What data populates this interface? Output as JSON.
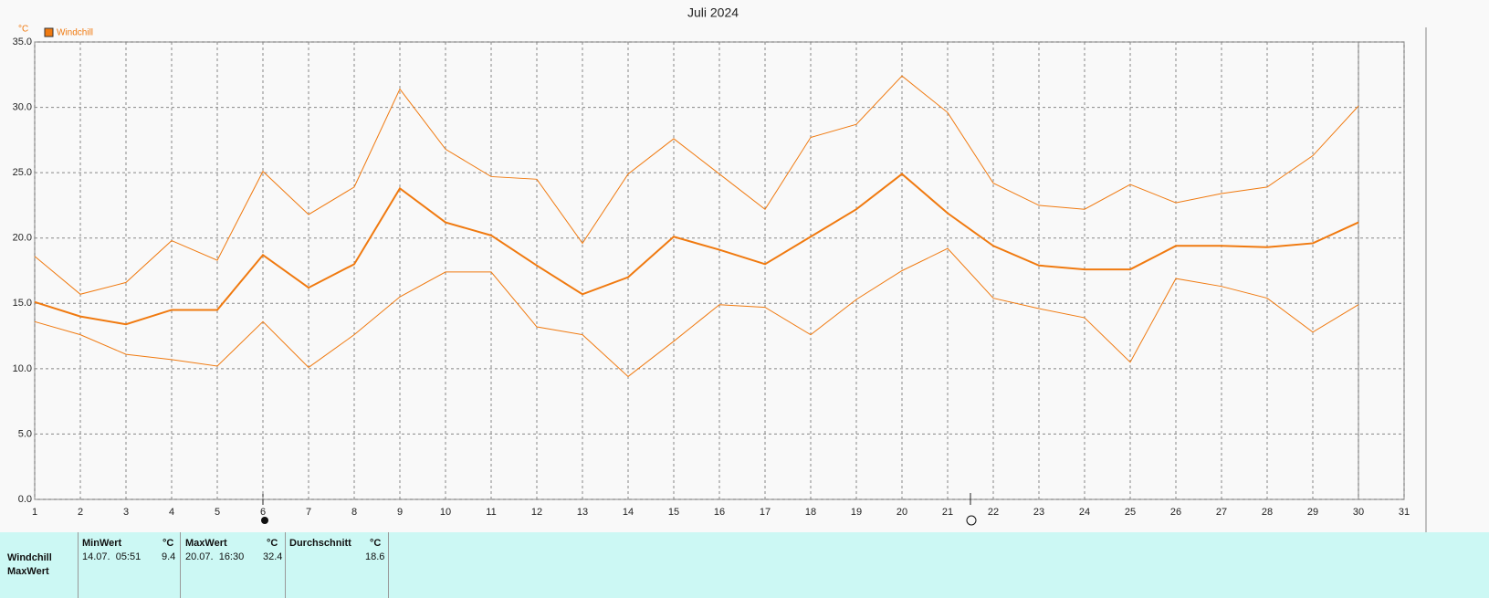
{
  "chart_data": {
    "type": "line",
    "title": "Juli 2024",
    "y_unit": "°C",
    "x": [
      1,
      2,
      3,
      4,
      5,
      6,
      7,
      8,
      9,
      10,
      11,
      12,
      13,
      14,
      15,
      16,
      17,
      18,
      19,
      20,
      21,
      22,
      23,
      24,
      25,
      26,
      27,
      28,
      29,
      30
    ],
    "series": [
      {
        "name": "Windchill",
        "color": "#f07a10",
        "width": 2,
        "values": [
          15.1,
          14.0,
          13.4,
          14.5,
          14.5,
          18.7,
          16.2,
          18.0,
          23.8,
          21.2,
          20.2,
          17.9,
          15.7,
          17.0,
          20.1,
          19.1,
          18.0,
          20.1,
          22.2,
          24.9,
          21.9,
          19.4,
          17.9,
          17.6,
          17.6,
          19.4,
          19.4,
          19.3,
          19.6,
          21.2
        ]
      },
      {
        "color": "#f07a10",
        "width": 1,
        "values": [
          18.6,
          15.7,
          16.6,
          19.8,
          18.3,
          25.1,
          21.8,
          23.9,
          31.4,
          26.8,
          24.7,
          24.5,
          19.6,
          24.9,
          27.6,
          24.9,
          22.2,
          27.7,
          28.7,
          32.4,
          29.6,
          24.2,
          22.5,
          22.2,
          24.1,
          22.7,
          23.4,
          23.9,
          26.3,
          30.1
        ]
      },
      {
        "color": "#f07a10",
        "width": 1,
        "values": [
          13.6,
          12.6,
          11.1,
          10.7,
          10.2,
          13.6,
          10.1,
          12.6,
          15.5,
          17.4,
          17.4,
          13.2,
          12.6,
          9.4,
          12.1,
          14.9,
          14.7,
          12.6,
          15.3,
          17.5,
          19.2,
          15.4,
          14.6,
          13.9,
          10.5,
          16.9,
          16.3,
          15.4,
          12.8,
          14.9
        ]
      }
    ],
    "xlim": [
      1,
      31
    ],
    "xticks": [
      1,
      2,
      3,
      4,
      5,
      6,
      7,
      8,
      9,
      10,
      11,
      12,
      13,
      14,
      15,
      16,
      17,
      18,
      19,
      20,
      21,
      22,
      23,
      24,
      25,
      26,
      27,
      28,
      29,
      30,
      31
    ],
    "ylim": [
      0,
      35
    ],
    "yticks": [
      {
        "value": 0,
        "label": "0.0"
      },
      {
        "value": 5,
        "label": "5.0"
      },
      {
        "value": 10,
        "label": "10.0"
      },
      {
        "value": 15,
        "label": "15.0"
      },
      {
        "value": 20,
        "label": "20.0"
      },
      {
        "value": 25,
        "label": "25.0"
      },
      {
        "value": 30,
        "label": "30.0"
      },
      {
        "value": 35,
        "label": "35.0"
      }
    ],
    "grid": true
  },
  "table": {
    "header": [
      [
        "MinWert",
        "°C"
      ],
      [
        "MaxWert",
        "°C"
      ],
      [
        "Durchschnitt",
        "°C"
      ]
    ],
    "rows": [
      [
        "Windchill",
        "14.07.  05:51",
        "9.4",
        "20.07.  16:30",
        "32.4",
        "18.6"
      ],
      [
        "MaxWert"
      ]
    ]
  }
}
